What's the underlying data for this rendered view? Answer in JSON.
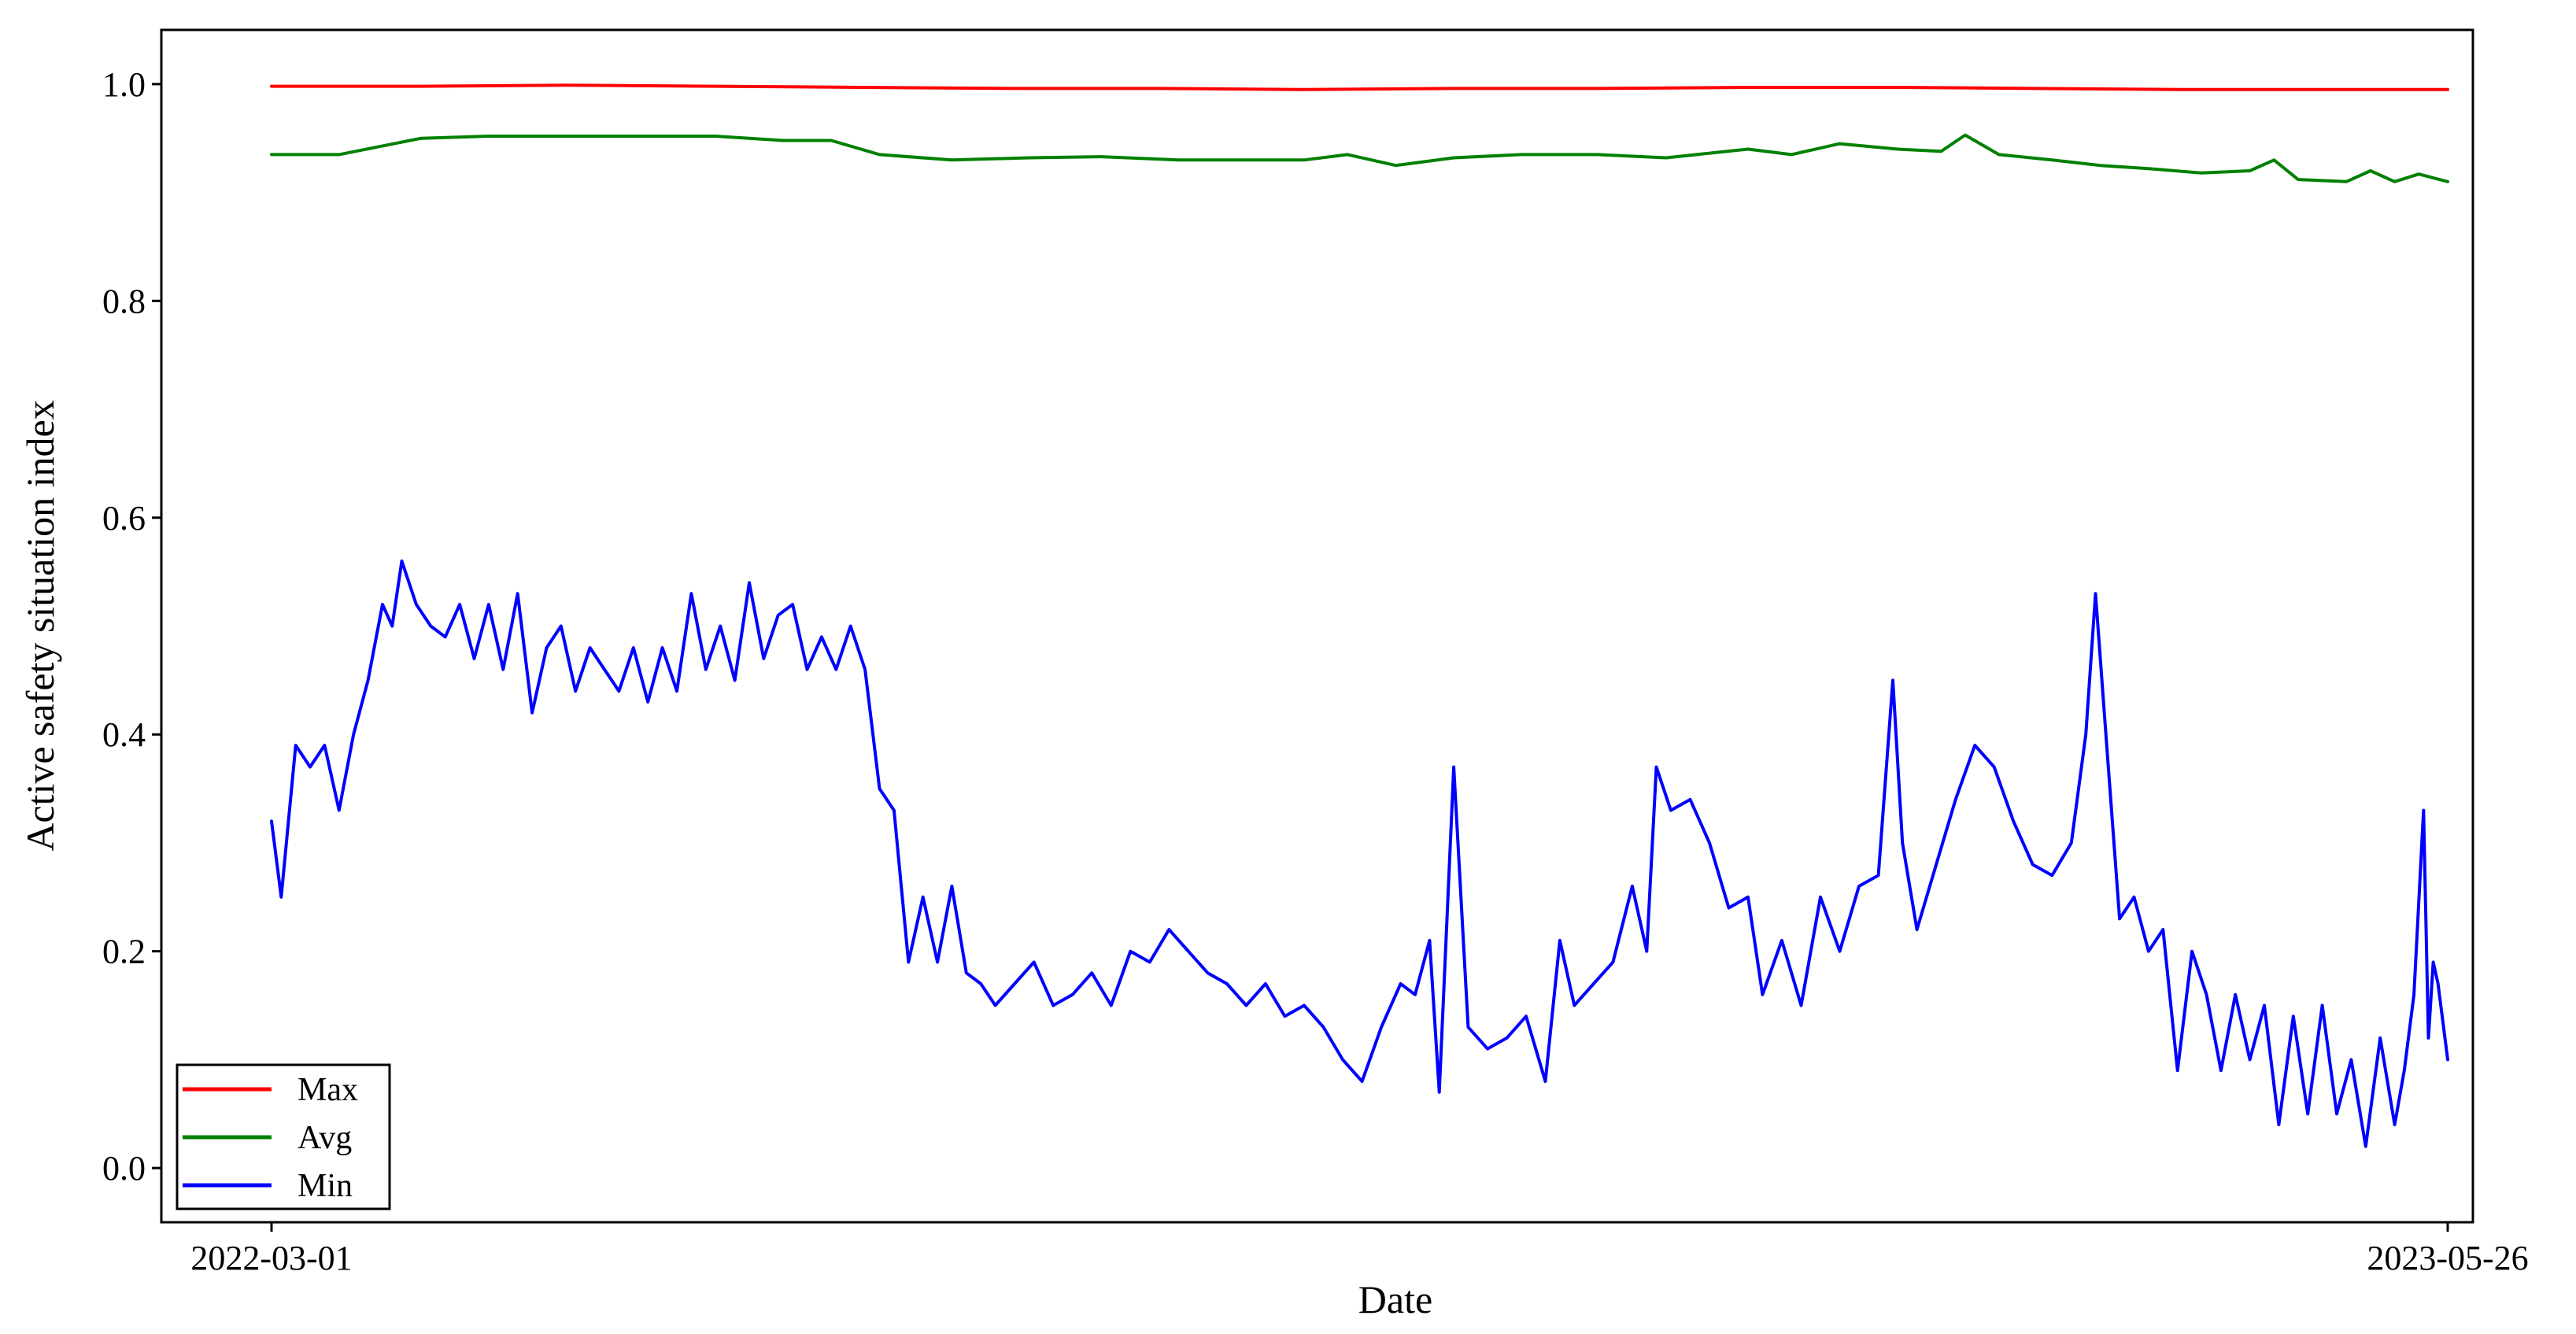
{
  "chart_data": {
    "type": "line",
    "title": "",
    "xlabel": "Date",
    "ylabel": "Active safety situation index",
    "x_type": "date",
    "xlim": [
      "2022-03-01",
      "2023-05-26"
    ],
    "x_ticks": [
      "2022-03-01",
      "2023-05-26"
    ],
    "ylim": [
      -0.05,
      1.05
    ],
    "y_ticks": [
      {
        "value": 0.0,
        "label": "0.0"
      },
      {
        "value": 0.2,
        "label": "0.2"
      },
      {
        "value": 0.4,
        "label": "0.4"
      },
      {
        "value": 0.6,
        "label": "0.6"
      },
      {
        "value": 0.8,
        "label": "0.8"
      },
      {
        "value": 1.0,
        "label": "1.0"
      }
    ],
    "grid": false,
    "legend_position": "bottom-left",
    "colors": {
      "Max": "#ff0000",
      "Avg": "#008000",
      "Min": "#0000ff"
    },
    "series": [
      {
        "name": "Max",
        "color": "#ff0000",
        "points": [
          [
            "2022-03-01",
            0.998
          ],
          [
            "2022-04-01",
            0.998
          ],
          [
            "2022-05-01",
            0.999
          ],
          [
            "2022-06-01",
            0.998
          ],
          [
            "2022-07-01",
            0.997
          ],
          [
            "2022-08-01",
            0.996
          ],
          [
            "2022-09-01",
            0.996
          ],
          [
            "2022-10-01",
            0.995
          ],
          [
            "2022-11-01",
            0.996
          ],
          [
            "2022-12-01",
            0.996
          ],
          [
            "2023-01-01",
            0.997
          ],
          [
            "2023-02-01",
            0.997
          ],
          [
            "2023-03-01",
            0.996
          ],
          [
            "2023-04-01",
            0.995
          ],
          [
            "2023-05-01",
            0.995
          ],
          [
            "2023-05-26",
            0.995
          ]
        ]
      },
      {
        "name": "Avg",
        "color": "#008000",
        "points": [
          [
            "2022-03-01",
            0.935
          ],
          [
            "2022-03-15",
            0.935
          ],
          [
            "2022-04-01",
            0.95
          ],
          [
            "2022-04-15",
            0.952
          ],
          [
            "2022-05-01",
            0.952
          ],
          [
            "2022-05-15",
            0.952
          ],
          [
            "2022-06-01",
            0.952
          ],
          [
            "2022-06-15",
            0.948
          ],
          [
            "2022-06-25",
            0.948
          ],
          [
            "2022-07-05",
            0.935
          ],
          [
            "2022-07-20",
            0.93
          ],
          [
            "2022-08-05",
            0.932
          ],
          [
            "2022-08-20",
            0.933
          ],
          [
            "2022-09-05",
            0.93
          ],
          [
            "2022-09-20",
            0.93
          ],
          [
            "2022-10-01",
            0.93
          ],
          [
            "2022-10-10",
            0.935
          ],
          [
            "2022-10-20",
            0.925
          ],
          [
            "2022-11-01",
            0.932
          ],
          [
            "2022-11-15",
            0.935
          ],
          [
            "2022-12-01",
            0.935
          ],
          [
            "2022-12-15",
            0.932
          ],
          [
            "2023-01-01",
            0.94
          ],
          [
            "2023-01-10",
            0.935
          ],
          [
            "2023-01-20",
            0.945
          ],
          [
            "2023-02-01",
            0.94
          ],
          [
            "2023-02-10",
            0.938
          ],
          [
            "2023-02-15",
            0.953
          ],
          [
            "2023-02-22",
            0.935
          ],
          [
            "2023-03-05",
            0.93
          ],
          [
            "2023-03-15",
            0.925
          ],
          [
            "2023-03-25",
            0.922
          ],
          [
            "2023-04-05",
            0.918
          ],
          [
            "2023-04-15",
            0.92
          ],
          [
            "2023-04-20",
            0.93
          ],
          [
            "2023-04-25",
            0.912
          ],
          [
            "2023-05-05",
            0.91
          ],
          [
            "2023-05-10",
            0.92
          ],
          [
            "2023-05-15",
            0.91
          ],
          [
            "2023-05-20",
            0.917
          ],
          [
            "2023-05-26",
            0.91
          ]
        ]
      },
      {
        "name": "Min",
        "color": "#0000ff",
        "points": [
          [
            "2022-03-01",
            0.32
          ],
          [
            "2022-03-03",
            0.25
          ],
          [
            "2022-03-06",
            0.39
          ],
          [
            "2022-03-09",
            0.37
          ],
          [
            "2022-03-12",
            0.39
          ],
          [
            "2022-03-15",
            0.33
          ],
          [
            "2022-03-18",
            0.4
          ],
          [
            "2022-03-21",
            0.45
          ],
          [
            "2022-03-24",
            0.52
          ],
          [
            "2022-03-26",
            0.5
          ],
          [
            "2022-03-28",
            0.56
          ],
          [
            "2022-03-31",
            0.52
          ],
          [
            "2022-04-03",
            0.5
          ],
          [
            "2022-04-06",
            0.49
          ],
          [
            "2022-04-09",
            0.52
          ],
          [
            "2022-04-12",
            0.47
          ],
          [
            "2022-04-15",
            0.52
          ],
          [
            "2022-04-18",
            0.46
          ],
          [
            "2022-04-21",
            0.53
          ],
          [
            "2022-04-24",
            0.42
          ],
          [
            "2022-04-27",
            0.48
          ],
          [
            "2022-04-30",
            0.5
          ],
          [
            "2022-05-03",
            0.44
          ],
          [
            "2022-05-06",
            0.48
          ],
          [
            "2022-05-09",
            0.46
          ],
          [
            "2022-05-12",
            0.44
          ],
          [
            "2022-05-15",
            0.48
          ],
          [
            "2022-05-18",
            0.43
          ],
          [
            "2022-05-21",
            0.48
          ],
          [
            "2022-05-24",
            0.44
          ],
          [
            "2022-05-27",
            0.53
          ],
          [
            "2022-05-30",
            0.46
          ],
          [
            "2022-06-02",
            0.5
          ],
          [
            "2022-06-05",
            0.45
          ],
          [
            "2022-06-08",
            0.54
          ],
          [
            "2022-06-11",
            0.47
          ],
          [
            "2022-06-14",
            0.51
          ],
          [
            "2022-06-17",
            0.52
          ],
          [
            "2022-06-20",
            0.46
          ],
          [
            "2022-06-23",
            0.49
          ],
          [
            "2022-06-26",
            0.46
          ],
          [
            "2022-06-29",
            0.5
          ],
          [
            "2022-07-02",
            0.46
          ],
          [
            "2022-07-05",
            0.35
          ],
          [
            "2022-07-08",
            0.33
          ],
          [
            "2022-07-11",
            0.19
          ],
          [
            "2022-07-14",
            0.25
          ],
          [
            "2022-07-17",
            0.19
          ],
          [
            "2022-07-20",
            0.26
          ],
          [
            "2022-07-23",
            0.18
          ],
          [
            "2022-07-26",
            0.17
          ],
          [
            "2022-07-29",
            0.15
          ],
          [
            "2022-08-02",
            0.17
          ],
          [
            "2022-08-06",
            0.19
          ],
          [
            "2022-08-10",
            0.15
          ],
          [
            "2022-08-14",
            0.16
          ],
          [
            "2022-08-18",
            0.18
          ],
          [
            "2022-08-22",
            0.15
          ],
          [
            "2022-08-26",
            0.2
          ],
          [
            "2022-08-30",
            0.19
          ],
          [
            "2022-09-03",
            0.22
          ],
          [
            "2022-09-07",
            0.2
          ],
          [
            "2022-09-11",
            0.18
          ],
          [
            "2022-09-15",
            0.17
          ],
          [
            "2022-09-19",
            0.15
          ],
          [
            "2022-09-23",
            0.17
          ],
          [
            "2022-09-27",
            0.14
          ],
          [
            "2022-10-01",
            0.15
          ],
          [
            "2022-10-05",
            0.13
          ],
          [
            "2022-10-09",
            0.1
          ],
          [
            "2022-10-13",
            0.08
          ],
          [
            "2022-10-17",
            0.13
          ],
          [
            "2022-10-21",
            0.17
          ],
          [
            "2022-10-24",
            0.16
          ],
          [
            "2022-10-27",
            0.21
          ],
          [
            "2022-10-29",
            0.07
          ],
          [
            "2022-11-01",
            0.37
          ],
          [
            "2022-11-04",
            0.13
          ],
          [
            "2022-11-08",
            0.11
          ],
          [
            "2022-11-12",
            0.12
          ],
          [
            "2022-11-16",
            0.14
          ],
          [
            "2022-11-20",
            0.08
          ],
          [
            "2022-11-23",
            0.21
          ],
          [
            "2022-11-26",
            0.15
          ],
          [
            "2022-11-30",
            0.17
          ],
          [
            "2022-12-04",
            0.19
          ],
          [
            "2022-12-08",
            0.26
          ],
          [
            "2022-12-11",
            0.2
          ],
          [
            "2022-12-13",
            0.37
          ],
          [
            "2022-12-16",
            0.33
          ],
          [
            "2022-12-20",
            0.34
          ],
          [
            "2022-12-24",
            0.3
          ],
          [
            "2022-12-28",
            0.24
          ],
          [
            "2023-01-01",
            0.25
          ],
          [
            "2023-01-04",
            0.16
          ],
          [
            "2023-01-08",
            0.21
          ],
          [
            "2023-01-12",
            0.15
          ],
          [
            "2023-01-16",
            0.25
          ],
          [
            "2023-01-20",
            0.2
          ],
          [
            "2023-01-24",
            0.26
          ],
          [
            "2023-01-28",
            0.27
          ],
          [
            "2023-01-31",
            0.45
          ],
          [
            "2023-02-02",
            0.3
          ],
          [
            "2023-02-05",
            0.22
          ],
          [
            "2023-02-09",
            0.28
          ],
          [
            "2023-02-13",
            0.34
          ],
          [
            "2023-02-17",
            0.39
          ],
          [
            "2023-02-21",
            0.37
          ],
          [
            "2023-02-25",
            0.32
          ],
          [
            "2023-03-01",
            0.28
          ],
          [
            "2023-03-05",
            0.27
          ],
          [
            "2023-03-09",
            0.3
          ],
          [
            "2023-03-12",
            0.4
          ],
          [
            "2023-03-14",
            0.53
          ],
          [
            "2023-03-16",
            0.41
          ],
          [
            "2023-03-19",
            0.23
          ],
          [
            "2023-03-22",
            0.25
          ],
          [
            "2023-03-25",
            0.2
          ],
          [
            "2023-03-28",
            0.22
          ],
          [
            "2023-03-31",
            0.09
          ],
          [
            "2023-04-03",
            0.2
          ],
          [
            "2023-04-06",
            0.16
          ],
          [
            "2023-04-09",
            0.09
          ],
          [
            "2023-04-12",
            0.16
          ],
          [
            "2023-04-15",
            0.1
          ],
          [
            "2023-04-18",
            0.15
          ],
          [
            "2023-04-21",
            0.04
          ],
          [
            "2023-04-24",
            0.14
          ],
          [
            "2023-04-27",
            0.05
          ],
          [
            "2023-04-30",
            0.15
          ],
          [
            "2023-05-03",
            0.05
          ],
          [
            "2023-05-06",
            0.1
          ],
          [
            "2023-05-09",
            0.02
          ],
          [
            "2023-05-12",
            0.12
          ],
          [
            "2023-05-15",
            0.04
          ],
          [
            "2023-05-17",
            0.09
          ],
          [
            "2023-05-19",
            0.16
          ],
          [
            "2023-05-21",
            0.33
          ],
          [
            "2023-05-22",
            0.12
          ],
          [
            "2023-05-23",
            0.19
          ],
          [
            "2023-05-24",
            0.17
          ],
          [
            "2023-05-26",
            0.1
          ]
        ]
      }
    ]
  }
}
